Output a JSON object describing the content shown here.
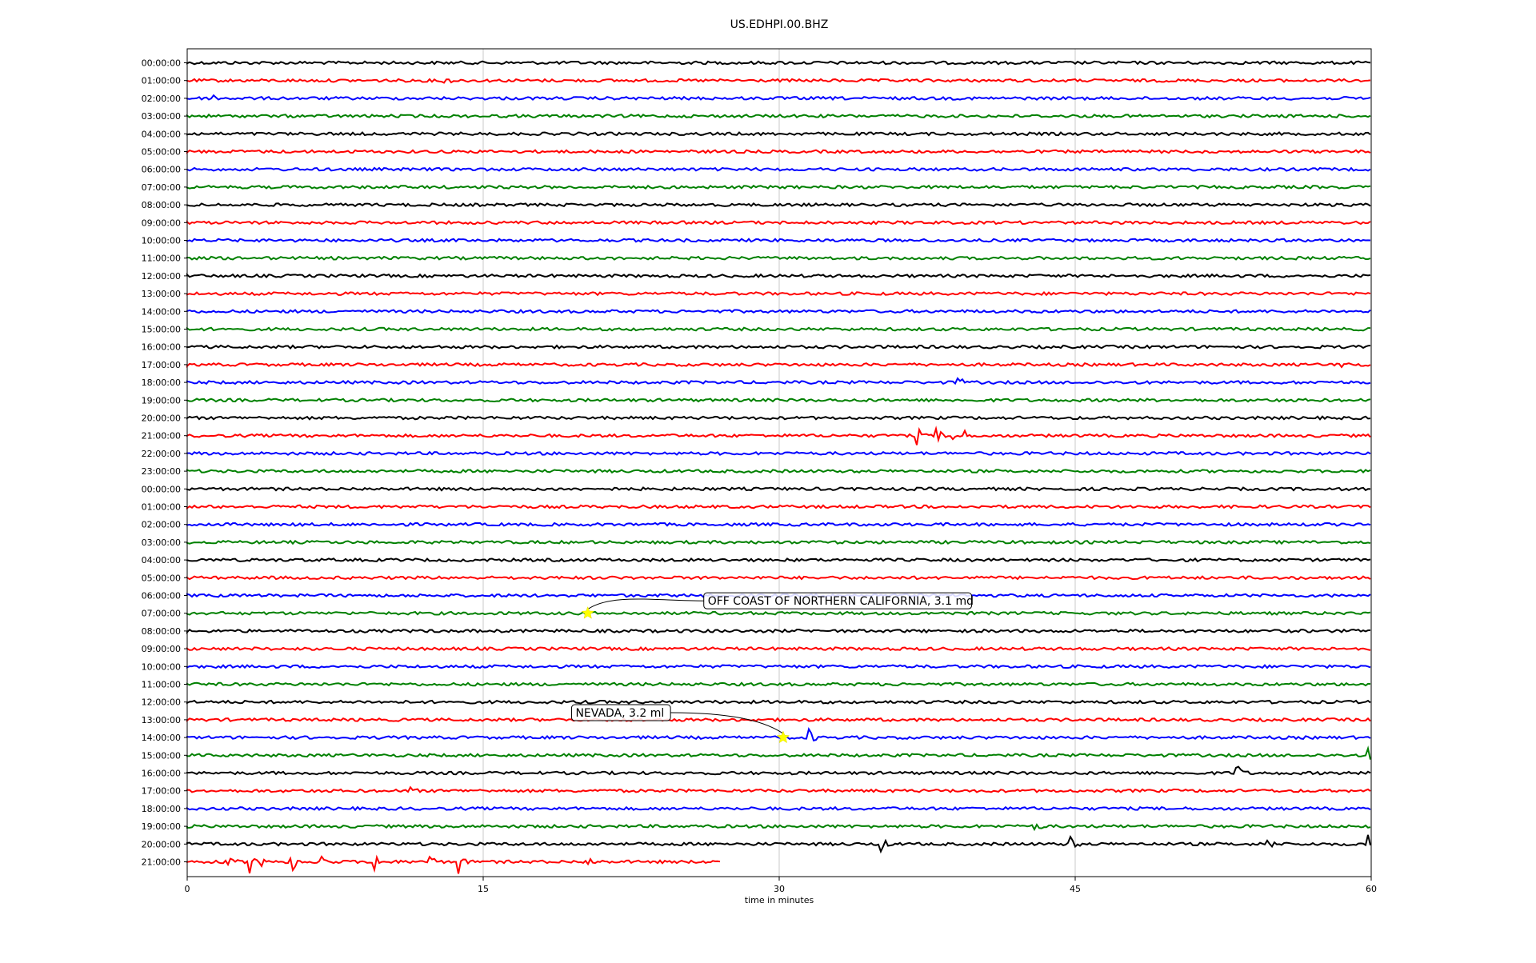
{
  "chart_data": {
    "type": "line",
    "title": "US.EDHPI.00.BHZ",
    "xlabel": "time in minutes",
    "ylabel": "",
    "xlim": [
      0,
      60
    ],
    "x_ticks": [
      0,
      15,
      30,
      45,
      60
    ],
    "grid": "vertical",
    "trace_colors": [
      "#000000",
      "#ff0000",
      "#0000ff",
      "#008000"
    ],
    "rows": [
      "00:00:00",
      "01:00:00",
      "02:00:00",
      "03:00:00",
      "04:00:00",
      "05:00:00",
      "06:00:00",
      "07:00:00",
      "08:00:00",
      "09:00:00",
      "10:00:00",
      "11:00:00",
      "12:00:00",
      "13:00:00",
      "14:00:00",
      "15:00:00",
      "16:00:00",
      "17:00:00",
      "18:00:00",
      "19:00:00",
      "20:00:00",
      "21:00:00",
      "22:00:00",
      "23:00:00",
      "00:00:00",
      "01:00:00",
      "02:00:00",
      "03:00:00",
      "04:00:00",
      "05:00:00",
      "06:00:00",
      "07:00:00",
      "08:00:00",
      "09:00:00",
      "10:00:00",
      "11:00:00",
      "12:00:00",
      "13:00:00",
      "14:00:00",
      "15:00:00",
      "16:00:00",
      "17:00:00",
      "18:00:00",
      "19:00:00",
      "20:00:00",
      "21:00:00"
    ],
    "last_row_end_minute": 27,
    "events": [
      {
        "row": 1,
        "minute": 13.0,
        "amp": 1.1
      },
      {
        "row": 2,
        "minute": 1.3,
        "amp": 0.8
      },
      {
        "row": 17,
        "minute": 58.5,
        "amp": 1.0
      },
      {
        "row": 18,
        "minute": 39.1,
        "amp": 0.9
      },
      {
        "row": 21,
        "minute": 37.0,
        "amp": 1.5
      },
      {
        "row": 21,
        "minute": 38.0,
        "amp": 1.3
      },
      {
        "row": 21,
        "minute": 38.8,
        "amp": 1.6
      },
      {
        "row": 21,
        "minute": 39.2,
        "amp": 2.4
      },
      {
        "row": 38,
        "minute": 31.5,
        "amp": 1.8
      },
      {
        "row": 39,
        "minute": 59.8,
        "amp": 1.4
      },
      {
        "row": 40,
        "minute": 53.2,
        "amp": 2.2
      },
      {
        "row": 41,
        "minute": 11.2,
        "amp": 1.0
      },
      {
        "row": 43,
        "minute": 43.0,
        "amp": 0.9
      },
      {
        "row": 44,
        "minute": 35.2,
        "amp": 1.2
      },
      {
        "row": 44,
        "minute": 44.7,
        "amp": 2.0
      },
      {
        "row": 44,
        "minute": 54.8,
        "amp": 1.2
      },
      {
        "row": 44,
        "minute": 59.9,
        "amp": 2.0
      },
      {
        "row": 45,
        "minute": 2.0,
        "amp": 2.5
      },
      {
        "row": 45,
        "minute": 3.2,
        "amp": 2.0
      },
      {
        "row": 45,
        "minute": 3.8,
        "amp": 1.8
      },
      {
        "row": 45,
        "minute": 5.3,
        "amp": 2.2
      },
      {
        "row": 45,
        "minute": 6.8,
        "amp": 2.0
      },
      {
        "row": 45,
        "minute": 9.5,
        "amp": 2.4
      },
      {
        "row": 45,
        "minute": 12.3,
        "amp": 1.6
      },
      {
        "row": 45,
        "minute": 13.8,
        "amp": 2.0
      },
      {
        "row": 45,
        "minute": 20.3,
        "amp": 1.6
      }
    ],
    "annotations": [
      {
        "text": "OFF COAST OF NORTHERN CALIFORNIA, 3.1 md",
        "row": 31,
        "minute": 20.3,
        "label_row": 30.3,
        "label_minute": 26.3,
        "marker_color": "#ffff00"
      },
      {
        "text": "NEVADA, 3.2 ml",
        "row": 38,
        "minute": 30.2,
        "label_row": 36.6,
        "label_minute": 19.6,
        "marker_color": "#ffff00"
      }
    ]
  }
}
